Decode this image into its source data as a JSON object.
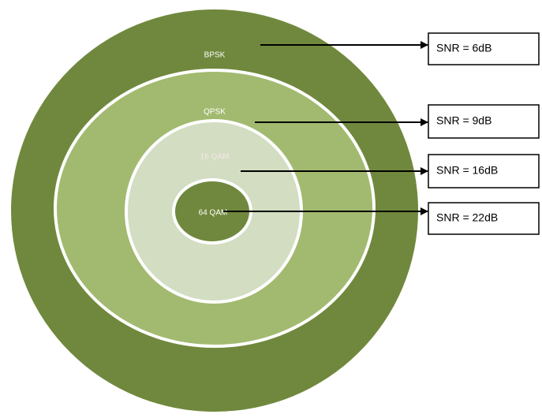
{
  "rings": [
    {
      "label": "BPSK",
      "snr": "SNR = 6dB"
    },
    {
      "label": "QPSK",
      "snr": "SNR = 9dB"
    },
    {
      "label": "16 QAM",
      "snr": "SNR = 16dB"
    },
    {
      "label": "64 QAM",
      "snr": "SNR = 22dB"
    }
  ]
}
